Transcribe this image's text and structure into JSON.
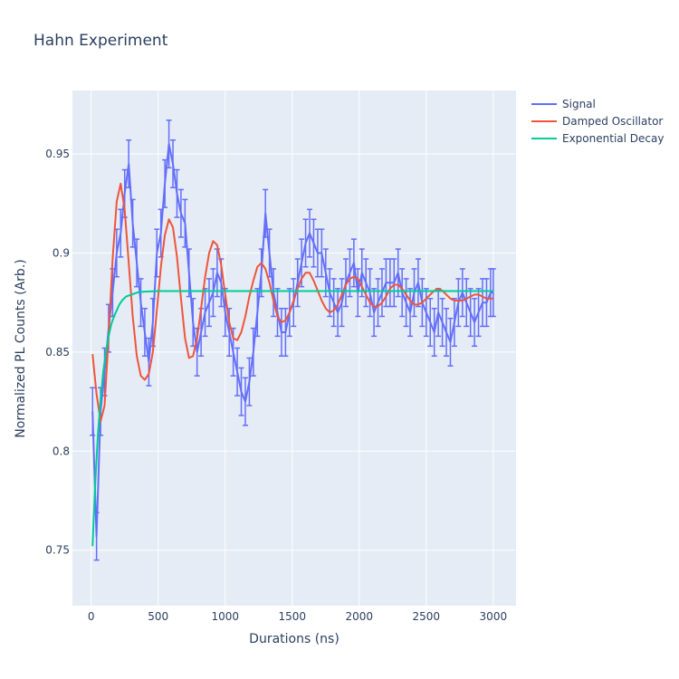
{
  "chart_data": {
    "type": "line",
    "title": "Hahn Experiment",
    "xlabel": "Durations (ns)",
    "ylabel": "Normalized PL Counts (Arb.)",
    "xlim": [
      -140,
      3170
    ],
    "ylim": [
      0.722,
      0.982
    ],
    "x_ticks": [
      0,
      500,
      1000,
      1500,
      2000,
      2500,
      3000
    ],
    "x_tick_labels": [
      "0",
      "500",
      "1000",
      "1500",
      "2000",
      "2500",
      "3000"
    ],
    "y_ticks": [
      0.75,
      0.8,
      0.85,
      0.9,
      0.95
    ],
    "y_tick_labels": [
      "0.75",
      "0.8",
      "0.85",
      "0.9",
      "0.95"
    ],
    "grid": true,
    "legend_position": "top-right",
    "background": "#E5ECF6",
    "series": [
      {
        "name": "Signal",
        "color": "#636EFA",
        "error_bar": 0.012,
        "x": [
          10,
          40,
          70,
          100,
          130,
          160,
          190,
          220,
          250,
          280,
          310,
          340,
          370,
          400,
          430,
          460,
          490,
          520,
          550,
          580,
          610,
          640,
          670,
          700,
          730,
          760,
          790,
          820,
          850,
          880,
          910,
          940,
          970,
          1000,
          1030,
          1060,
          1090,
          1120,
          1150,
          1180,
          1210,
          1240,
          1270,
          1300,
          1330,
          1360,
          1390,
          1420,
          1450,
          1480,
          1510,
          1540,
          1570,
          1600,
          1630,
          1660,
          1690,
          1720,
          1750,
          1780,
          1810,
          1840,
          1870,
          1900,
          1930,
          1960,
          1990,
          2020,
          2050,
          2080,
          2110,
          2140,
          2170,
          2200,
          2230,
          2260,
          2290,
          2320,
          2350,
          2380,
          2410,
          2440,
          2470,
          2500,
          2530,
          2560,
          2590,
          2620,
          2650,
          2680,
          2710,
          2740,
          2770,
          2800,
          2830,
          2860,
          2890,
          2920,
          2950,
          2980,
          3000
        ],
        "values": [
          0.82,
          0.757,
          0.82,
          0.84,
          0.862,
          0.88,
          0.9,
          0.91,
          0.93,
          0.945,
          0.915,
          0.895,
          0.875,
          0.86,
          0.845,
          0.865,
          0.9,
          0.91,
          0.935,
          0.955,
          0.945,
          0.93,
          0.92,
          0.915,
          0.89,
          0.865,
          0.85,
          0.86,
          0.87,
          0.875,
          0.88,
          0.89,
          0.885,
          0.87,
          0.86,
          0.85,
          0.84,
          0.83,
          0.825,
          0.835,
          0.85,
          0.87,
          0.89,
          0.92,
          0.9,
          0.88,
          0.87,
          0.86,
          0.86,
          0.87,
          0.875,
          0.885,
          0.895,
          0.905,
          0.91,
          0.905,
          0.9,
          0.9,
          0.89,
          0.88,
          0.875,
          0.87,
          0.875,
          0.885,
          0.89,
          0.895,
          0.88,
          0.89,
          0.885,
          0.88,
          0.87,
          0.875,
          0.88,
          0.885,
          0.885,
          0.885,
          0.89,
          0.88,
          0.875,
          0.87,
          0.88,
          0.885,
          0.875,
          0.87,
          0.865,
          0.86,
          0.87,
          0.865,
          0.86,
          0.855,
          0.865,
          0.875,
          0.88,
          0.875,
          0.87,
          0.865,
          0.87,
          0.875,
          0.875,
          0.88,
          0.88
        ]
      },
      {
        "name": "Damped Oscillator",
        "color": "#EF553B",
        "x": [
          10,
          40,
          70,
          100,
          130,
          160,
          190,
          220,
          250,
          280,
          310,
          340,
          370,
          400,
          430,
          460,
          490,
          520,
          550,
          580,
          610,
          640,
          670,
          700,
          730,
          760,
          790,
          820,
          850,
          880,
          910,
          940,
          970,
          1000,
          1030,
          1060,
          1090,
          1120,
          1150,
          1180,
          1210,
          1240,
          1270,
          1300,
          1330,
          1360,
          1390,
          1420,
          1450,
          1480,
          1510,
          1540,
          1570,
          1600,
          1630,
          1660,
          1690,
          1720,
          1750,
          1780,
          1810,
          1840,
          1870,
          1900,
          1930,
          1960,
          1990,
          2020,
          2050,
          2080,
          2110,
          2140,
          2170,
          2200,
          2230,
          2260,
          2290,
          2320,
          2350,
          2380,
          2410,
          2440,
          2470,
          2500,
          2530,
          2560,
          2590,
          2620,
          2650,
          2680,
          2710,
          2740,
          2770,
          2800,
          2830,
          2860,
          2890,
          2920,
          2950,
          2980,
          3000
        ],
        "values": [
          0.849,
          0.829,
          0.815,
          0.823,
          0.858,
          0.897,
          0.926,
          0.935,
          0.922,
          0.895,
          0.868,
          0.848,
          0.838,
          0.836,
          0.839,
          0.85,
          0.871,
          0.893,
          0.909,
          0.917,
          0.913,
          0.898,
          0.877,
          0.857,
          0.847,
          0.848,
          0.857,
          0.872,
          0.888,
          0.9,
          0.906,
          0.904,
          0.894,
          0.879,
          0.865,
          0.857,
          0.856,
          0.86,
          0.868,
          0.878,
          0.886,
          0.893,
          0.895,
          0.892,
          0.885,
          0.876,
          0.868,
          0.865,
          0.866,
          0.87,
          0.876,
          0.882,
          0.887,
          0.89,
          0.89,
          0.886,
          0.881,
          0.876,
          0.872,
          0.87,
          0.871,
          0.874,
          0.879,
          0.884,
          0.887,
          0.888,
          0.887,
          0.883,
          0.879,
          0.875,
          0.873,
          0.873,
          0.875,
          0.878,
          0.882,
          0.884,
          0.884,
          0.882,
          0.879,
          0.876,
          0.874,
          0.874,
          0.875,
          0.877,
          0.879,
          0.881,
          0.882,
          0.881,
          0.879,
          0.877,
          0.876,
          0.876,
          0.876,
          0.877,
          0.878,
          0.879,
          0.879,
          0.878,
          0.877,
          0.877,
          0.877
        ]
      },
      {
        "name": "Exponential Decay",
        "color": "#00CC96",
        "x": [
          10,
          30,
          50,
          70,
          90,
          110,
          130,
          150,
          170,
          190,
          210,
          230,
          260,
          300,
          350,
          400,
          500,
          700,
          1000,
          1500,
          2000,
          2500,
          3000
        ],
        "values": [
          0.752,
          0.784,
          0.808,
          0.826,
          0.84,
          0.85,
          0.858,
          0.864,
          0.868,
          0.871,
          0.874,
          0.876,
          0.878,
          0.879,
          0.8802,
          0.8805,
          0.8808,
          0.8808,
          0.8808,
          0.8808,
          0.8808,
          0.8808,
          0.8808
        ]
      }
    ]
  }
}
